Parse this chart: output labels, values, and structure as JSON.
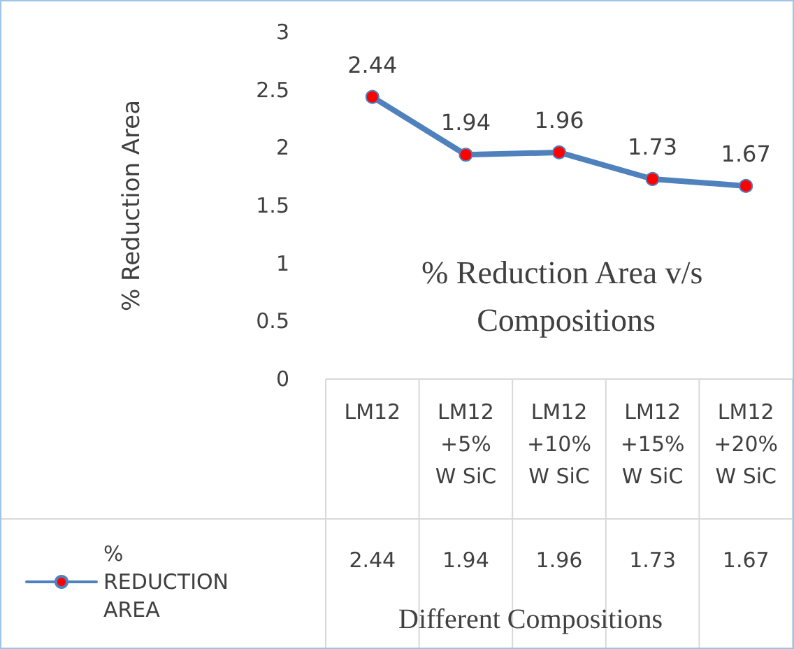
{
  "chart_data": {
    "type": "line",
    "title": "% Reduction Area v/s Compositions",
    "xlabel": "Different Compositions",
    "ylabel": "% Reduction Area",
    "categories": [
      "LM12",
      "LM12 +5% W SiC",
      "LM12 +10% W SiC",
      "LM12 +15% W SiC",
      "LM12 +20% W SiC"
    ],
    "series": [
      {
        "name": "% REDUCTION AREA",
        "color": "#4f81bd",
        "colors": [
          "#ff0000",
          "#ff0000",
          "#ff0000",
          "#ff0000",
          "#ff0000"
        ],
        "values": [
          2.44,
          1.94,
          1.96,
          1.73,
          1.67
        ],
        "value_labels": [
          "2.44",
          "1.94",
          "1.96",
          "1.73",
          "1.67"
        ]
      }
    ],
    "ylim": [
      0,
      3
    ],
    "yticks": [
      0,
      0.5,
      1,
      1.5,
      2,
      2.5,
      3
    ],
    "grid": false,
    "legend": "bottom left",
    "marker": "circle",
    "line_style": "solid",
    "data_labels": true
  }
}
